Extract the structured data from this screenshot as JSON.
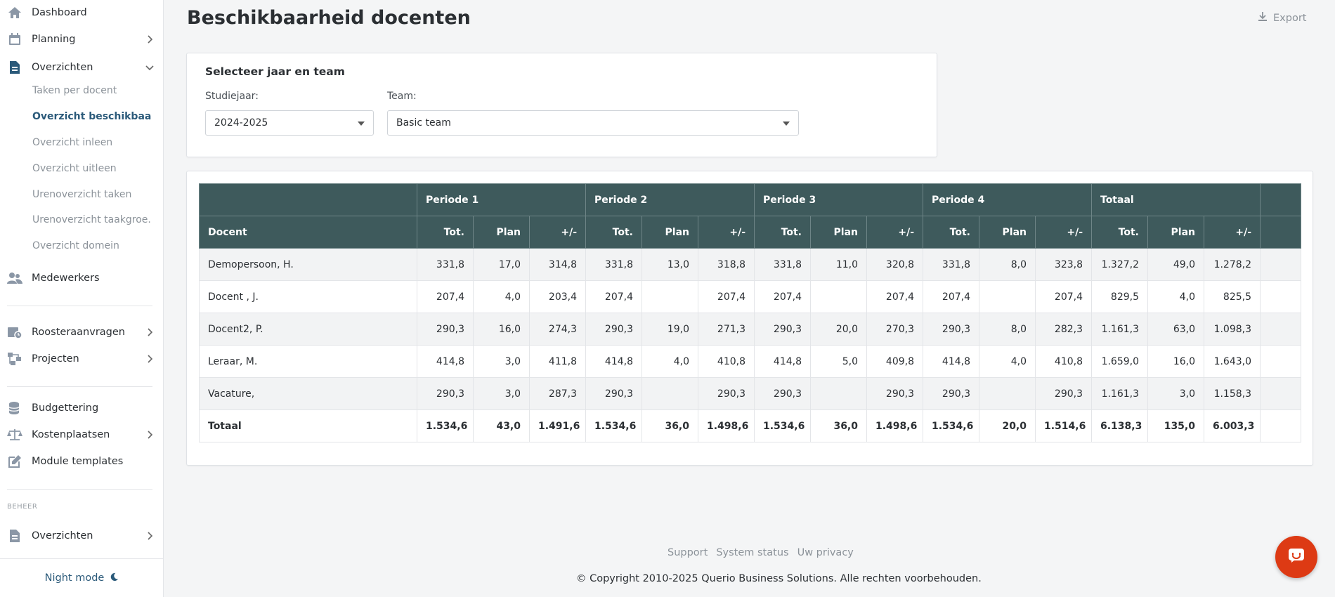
{
  "sidebar": {
    "items": [
      {
        "label": "Dashboard",
        "icon": "home-icon"
      },
      {
        "label": "Planning",
        "icon": "calendar-icon"
      },
      {
        "label": "Overzichten",
        "icon": "document-icon"
      },
      {
        "label": "Medewerkers",
        "icon": "users-icon"
      },
      {
        "label": "Roosteraanvragen",
        "icon": "calendar-clock-icon"
      },
      {
        "label": "Projecten",
        "icon": "project-icon"
      },
      {
        "label": "Budgettering",
        "icon": "coins-icon"
      },
      {
        "label": "Kostenplaatsen",
        "icon": "scale-icon"
      },
      {
        "label": "Module templates",
        "icon": "edit-icon"
      }
    ],
    "subitems": [
      "Taken per docent",
      "Overzicht beschikbaarh...",
      "Overzicht inleen",
      "Overzicht uitleen",
      "Urenoverzicht taken",
      "Urenoverzicht taakgroe...",
      "Overzicht domein"
    ],
    "section_beheer": "BEHEER",
    "beheer_item": "Overzichten",
    "night_mode": "Night mode"
  },
  "header": {
    "title": "Beschikbaarheid docenten",
    "export_label": "Export"
  },
  "filter": {
    "title": "Selecteer jaar en team",
    "studiejaar_label": "Studiejaar:",
    "studiejaar_value": "2024-2025",
    "team_label": "Team:",
    "team_value": "Basic team"
  },
  "table": {
    "groups": [
      "Periode 1",
      "Periode 2",
      "Periode 3",
      "Periode 4",
      "Totaal"
    ],
    "docent_header": "Docent",
    "sub_headers": [
      "Tot.",
      "Plan",
      "+/-"
    ],
    "rows": [
      {
        "name": "Demopersoon, H.",
        "values": [
          "331,8",
          "17,0",
          "314,8",
          "331,8",
          "13,0",
          "318,8",
          "331,8",
          "11,0",
          "320,8",
          "331,8",
          "8,0",
          "323,8",
          "1.327,2",
          "49,0",
          "1.278,2"
        ]
      },
      {
        "name": "Docent , J.",
        "values": [
          "207,4",
          "4,0",
          "203,4",
          "207,4",
          "",
          "207,4",
          "207,4",
          "",
          "207,4",
          "207,4",
          "",
          "207,4",
          "829,5",
          "4,0",
          "825,5"
        ]
      },
      {
        "name": "Docent2, P.",
        "values": [
          "290,3",
          "16,0",
          "274,3",
          "290,3",
          "19,0",
          "271,3",
          "290,3",
          "20,0",
          "270,3",
          "290,3",
          "8,0",
          "282,3",
          "1.161,3",
          "63,0",
          "1.098,3"
        ]
      },
      {
        "name": "Leraar, M.",
        "values": [
          "414,8",
          "3,0",
          "411,8",
          "414,8",
          "4,0",
          "410,8",
          "414,8",
          "5,0",
          "409,8",
          "414,8",
          "4,0",
          "410,8",
          "1.659,0",
          "16,0",
          "1.643,0"
        ]
      },
      {
        "name": "Vacature,",
        "values": [
          "290,3",
          "3,0",
          "287,3",
          "290,3",
          "",
          "290,3",
          "290,3",
          "",
          "290,3",
          "290,3",
          "",
          "290,3",
          "1.161,3",
          "3,0",
          "1.158,3"
        ]
      }
    ],
    "total": {
      "name": "Totaal",
      "values": [
        "1.534,6",
        "43,0",
        "1.491,6",
        "1.534,6",
        "36,0",
        "1.498,6",
        "1.534,6",
        "36,0",
        "1.498,6",
        "1.534,6",
        "20,0",
        "1.514,6",
        "6.138,3",
        "135,0",
        "6.003,3"
      ]
    }
  },
  "footer": {
    "links": [
      "Support",
      "System status",
      "Uw privacy"
    ],
    "copyright": "© Copyright 2010-2025 Querio Business Solutions. Alle rechten voorbehouden."
  },
  "colors": {
    "table_header": "#3e5a5c",
    "accent": "#2b5a7a",
    "chat_button": "#dd3a14"
  }
}
